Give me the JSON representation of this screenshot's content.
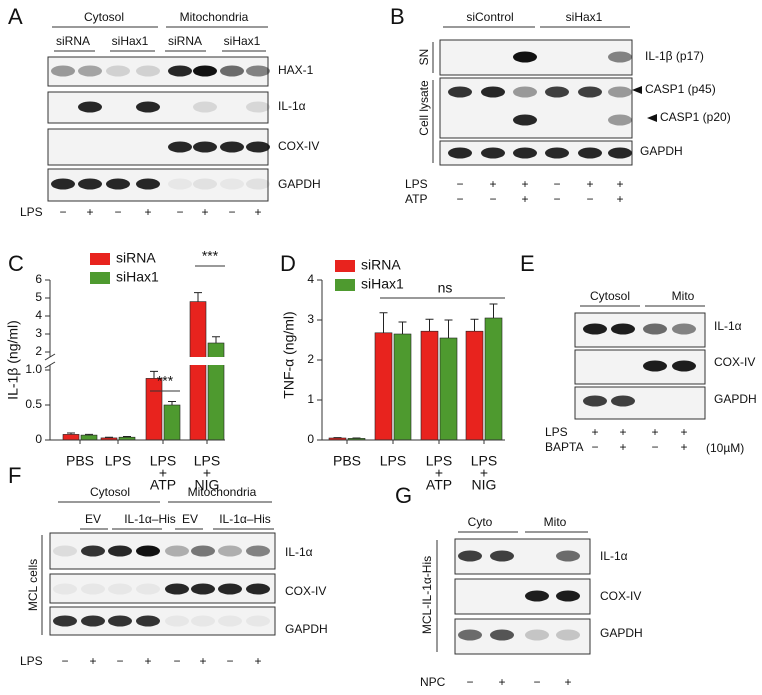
{
  "panels": {
    "A": {
      "letter": "A",
      "groups": [
        "Cytosol",
        "Mitochondria"
      ],
      "sub": [
        "siRNA",
        "siHax1",
        "siRNA",
        "siHax1"
      ],
      "blots": [
        "HAX-1",
        "IL-1α",
        "COX-IV",
        "GAPDH"
      ],
      "treatments": [
        {
          "label": "LPS",
          "signs": [
            "−",
            "+",
            "−",
            "+",
            "−",
            "+",
            "−",
            "+"
          ]
        }
      ]
    },
    "B": {
      "letter": "B",
      "groups": [
        "siControl",
        "siHax1"
      ],
      "fractions": [
        "SN",
        "Cell lysate"
      ],
      "blots": [
        "IL-1β (p17)",
        "CASP1 (p45)",
        "CASP1 (p20)",
        "GAPDH"
      ],
      "treatments": [
        {
          "label": "LPS",
          "signs": [
            "−",
            "+",
            "+",
            "−",
            "+",
            "+"
          ]
        },
        {
          "label": "ATP",
          "signs": [
            "−",
            "−",
            "+",
            "−",
            "−",
            "+"
          ]
        }
      ]
    },
    "C": {
      "letter": "C"
    },
    "D": {
      "letter": "D"
    },
    "E": {
      "letter": "E",
      "groups": [
        "Cytosol",
        "Mito"
      ],
      "blots": [
        "IL-1α",
        "COX-IV",
        "GAPDH"
      ],
      "treatments": [
        {
          "label": "LPS",
          "signs": [
            "+",
            "+",
            "+",
            "+"
          ]
        },
        {
          "label": "BAPTA",
          "signs": [
            "−",
            "+",
            "−",
            "+"
          ]
        }
      ],
      "note": "(10µM)"
    },
    "F": {
      "letter": "F",
      "groups": [
        "Cytosol",
        "Mitochondria"
      ],
      "sub": [
        "EV",
        "IL-1α–His",
        "EV",
        "IL-1α–His"
      ],
      "side": "MCL cells",
      "blots": [
        "IL-1α",
        "COX-IV",
        "GAPDH"
      ],
      "treatments": [
        {
          "label": "LPS",
          "signs": [
            "−",
            "+",
            "−",
            "+",
            "−",
            "+",
            "−",
            "+"
          ]
        }
      ]
    },
    "G": {
      "letter": "G",
      "groups": [
        "Cyto",
        "Mito"
      ],
      "side": "MCL-IL-1α-His",
      "blots": [
        "IL-1α",
        "COX-IV",
        "GAPDH"
      ],
      "treatments": [
        {
          "label": "NPC",
          "signs": [
            "−",
            "+",
            "−",
            "+"
          ]
        }
      ]
    }
  },
  "chart_data": [
    {
      "type": "bar",
      "ylabel": "IL-1β (ng/ml)",
      "categories": [
        [
          "PBS"
        ],
        [
          "LPS"
        ],
        [
          "LPS",
          "+",
          "ATP"
        ],
        [
          "LPS",
          "+",
          "NIG"
        ]
      ],
      "series": [
        {
          "name": "siRNA",
          "color": "#e8231e",
          "values": [
            0.08,
            0.03,
            0.88,
            4.8
          ],
          "errors": [
            0.02,
            0.01,
            0.1,
            0.5
          ]
        },
        {
          "name": "siHax1",
          "color": "#4e9a2f",
          "values": [
            0.07,
            0.04,
            0.5,
            2.5
          ],
          "errors": [
            0.01,
            0.01,
            0.05,
            0.35
          ]
        }
      ],
      "ylim": [
        0,
        6
      ],
      "ybreak": [
        1,
        2
      ],
      "yticks": [
        0,
        0.5,
        {
          "value": 1,
          "label": "1.0"
        },
        2,
        3,
        4,
        5,
        6
      ],
      "annotations": [
        "***",
        "***"
      ]
    },
    {
      "type": "bar",
      "ylabel": "TNF-α (ng/ml)",
      "categories": [
        [
          "PBS"
        ],
        [
          "LPS"
        ],
        [
          "LPS",
          "+",
          "ATP"
        ],
        [
          "LPS",
          "+",
          "NIG"
        ]
      ],
      "series": [
        {
          "name": "siRNA",
          "color": "#e8231e",
          "values": [
            0.05,
            2.68,
            2.72,
            2.72
          ],
          "errors": [
            0.01,
            0.5,
            0.3,
            0.3
          ]
        },
        {
          "name": "siHax1",
          "color": "#4e9a2f",
          "values": [
            0.04,
            2.65,
            2.55,
            3.05
          ],
          "errors": [
            0.01,
            0.3,
            0.45,
            0.35
          ]
        }
      ],
      "ylim": [
        0,
        4
      ],
      "yticks": [
        0,
        1,
        2,
        3,
        4
      ],
      "annotations": [
        "ns"
      ]
    }
  ]
}
